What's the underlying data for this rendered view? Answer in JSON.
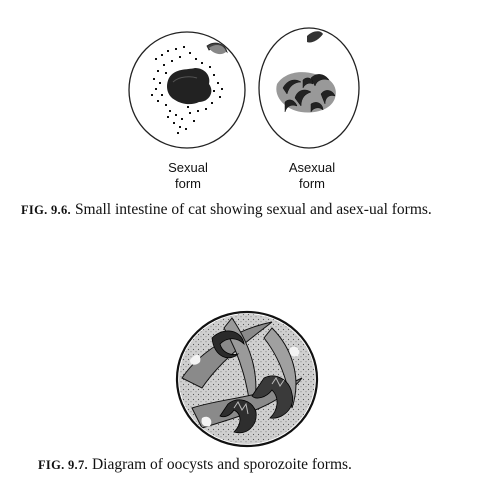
{
  "fig96": {
    "sexual_label_line1": "Sexual",
    "sexual_label_line2": "form",
    "asexual_label_line1": "Asexual",
    "asexual_label_line2": "form",
    "caption_number": "FIG. 9.6.",
    "caption_text": "Small intestine of cat showing sexual and asex-ual forms."
  },
  "fig97": {
    "caption_number": "FIG. 9.7.",
    "caption_text": "Diagram of oocysts and sporozoite forms."
  }
}
